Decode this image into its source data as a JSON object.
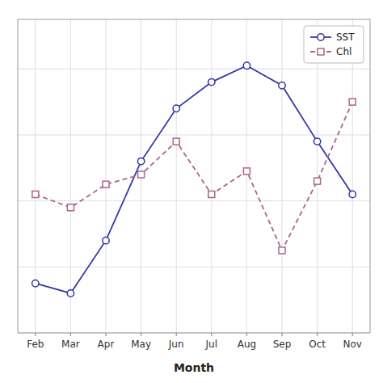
{
  "chart_data": {
    "type": "line",
    "x_label": "Month",
    "categories": [
      "Feb",
      "Mar",
      "Apr",
      "May",
      "Jun",
      "Jul",
      "Aug",
      "Sep",
      "Oct",
      "Nov"
    ],
    "series": [
      {
        "name": "SST",
        "color": "#3535aa",
        "marker": "circle",
        "line_style": "solid",
        "values": [
          1.5,
          1.2,
          2.8,
          5.2,
          6.8,
          7.6,
          8.1,
          7.5,
          5.8,
          4.2
        ]
      },
      {
        "name": "Chl",
        "color": "#aa6688",
        "marker": "square",
        "line_style": "dashed",
        "values": [
          4.2,
          3.8,
          4.5,
          4.8,
          5.8,
          4.2,
          4.9,
          2.5,
          4.6,
          7.0
        ]
      }
    ],
    "ylim": [
      0,
      9.5
    ],
    "yticks": [
      0,
      2,
      4,
      6,
      8
    ],
    "tick_labels": "x",
    "grid": true,
    "legend": "upper right"
  }
}
